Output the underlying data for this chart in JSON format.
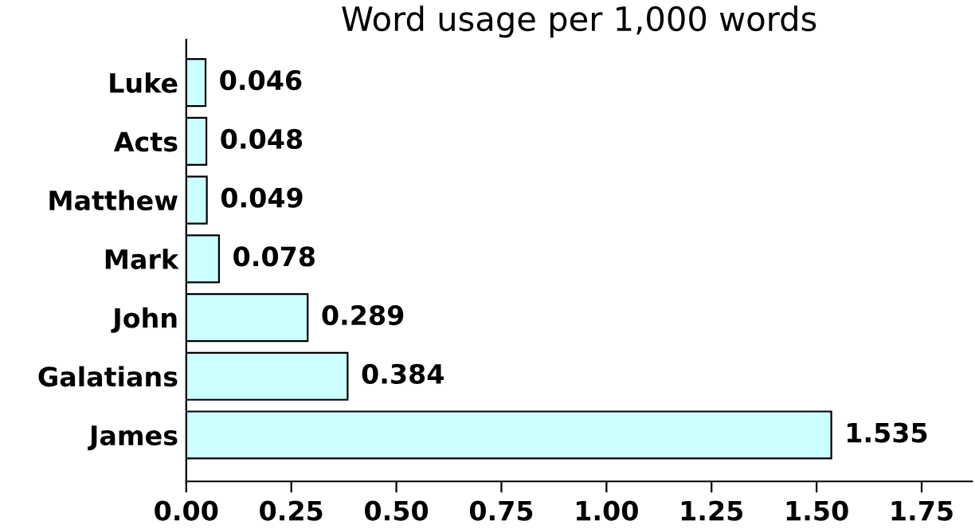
{
  "chart_data": {
    "type": "bar",
    "orientation": "horizontal",
    "title": "Word usage per 1,000 words",
    "categories": [
      "Luke",
      "Acts",
      "Matthew",
      "Mark",
      "John",
      "Galatians",
      "James"
    ],
    "values": [
      0.046,
      0.048,
      0.049,
      0.078,
      0.289,
      0.384,
      1.535
    ],
    "color": "#ccffff",
    "data_labels": true,
    "grid": false,
    "legend": false,
    "xlim": [
      0,
      1.87
    ],
    "xticks": [
      {
        "value": 0,
        "label": "0.00"
      },
      {
        "value": 0.25,
        "label": "0.25"
      },
      {
        "value": 0.5,
        "label": "0.50"
      },
      {
        "value": 0.75,
        "label": "0.75"
      },
      {
        "value": 1,
        "label": "1.00"
      },
      {
        "value": 1.25,
        "label": "1.25"
      },
      {
        "value": 1.5,
        "label": "1.50"
      },
      {
        "value": 1.75,
        "label": "1.75"
      }
    ]
  }
}
